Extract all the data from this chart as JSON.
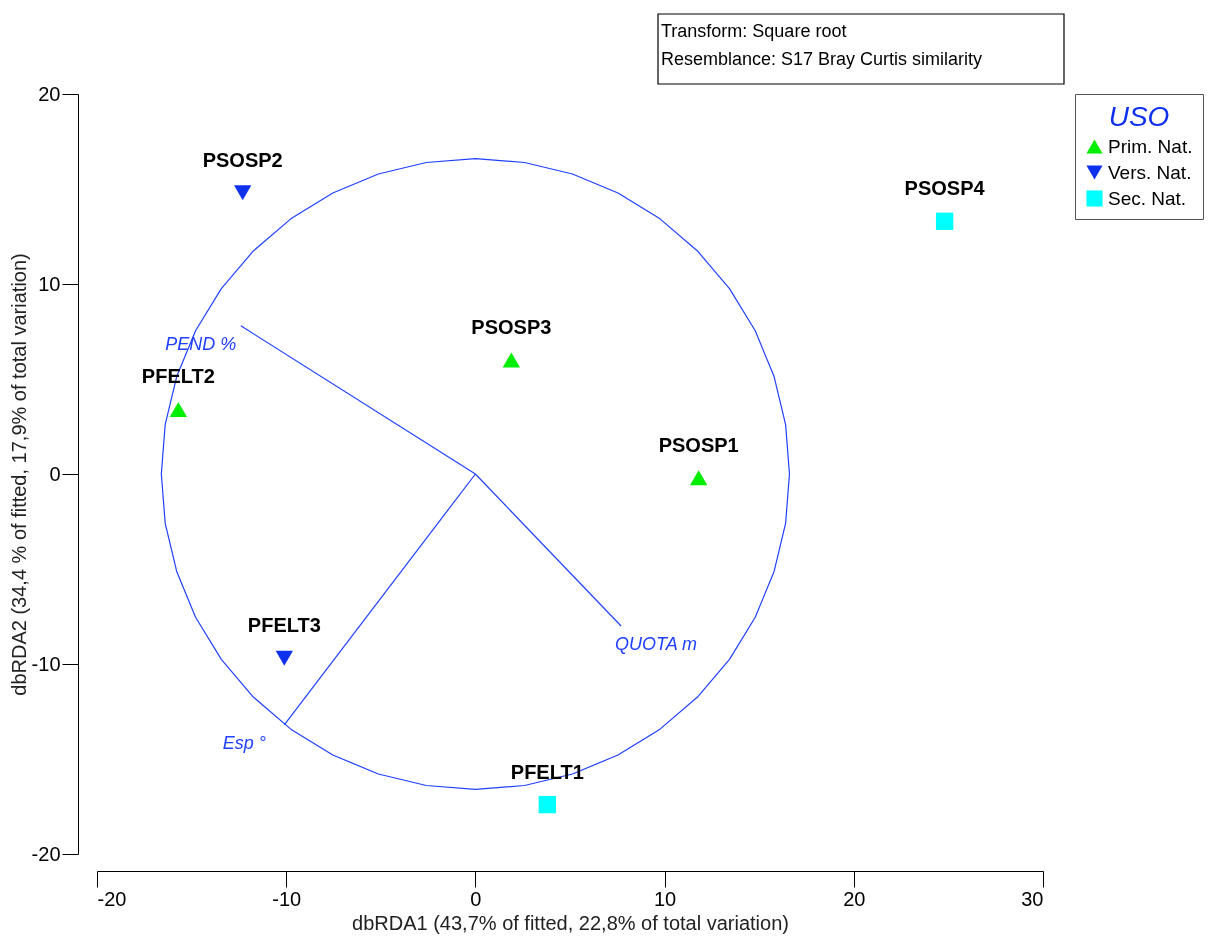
{
  "chart_data": {
    "type": "scatter",
    "xlabel": "dbRDA1 (43,7% of fitted, 22,8% of total variation)",
    "ylabel": "dbRDA2 (34,4 % of fitted, 17,9% of total variation)",
    "legend_title": "USO",
    "xlim": [
      -20,
      30
    ],
    "xticks": [
      -20,
      -10,
      0,
      10,
      20,
      30
    ],
    "ylim": [
      -20,
      20
    ],
    "yticks": [
      -20,
      -10,
      0,
      10,
      20
    ],
    "grid": false,
    "legend": "right",
    "series": [
      {
        "name": "Prim. Nat.",
        "color": "#00ee00",
        "marker": "triangle",
        "x": [
          1.9,
          -15.7,
          11.8
        ],
        "values": [
          6.0,
          3.4,
          -0.2
        ]
      },
      {
        "name": "Vers. Nat.",
        "color": "#1030f0",
        "marker": "triangle-down",
        "x": [
          -12.3,
          -10.1
        ],
        "values": [
          14.8,
          -9.7
        ]
      },
      {
        "name": "Sec. Nat.",
        "color": "#00ffff",
        "marker": "square",
        "x": [
          24.8,
          3.8
        ],
        "values": [
          13.3,
          -17.4
        ]
      },
      {
        "name": "PEND %",
        "type": "line",
        "color": "#2040ff",
        "marker": "none",
        "x": [
          0,
          -12.4
        ],
        "values": [
          0,
          7.8
        ]
      },
      {
        "name": "QUOTA m",
        "type": "line",
        "color": "#2040ff",
        "marker": "none",
        "x": [
          0,
          7.7
        ],
        "values": [
          0,
          -8.0
        ]
      },
      {
        "name": "Esp °",
        "type": "line",
        "color": "#2040ff",
        "marker": "none",
        "x": [
          0,
          -10.1
        ],
        "values": [
          0,
          -13.2
        ]
      }
    ],
    "annotations": [
      {
        "text": "PSOSP2",
        "x": -12.3,
        "y": 14.8
      },
      {
        "text": "PSOSP4",
        "x": 24.8,
        "y": 13.3
      },
      {
        "text": "PSOSP3",
        "x": 1.9,
        "y": 6.0
      },
      {
        "text": "PFELT2",
        "x": -15.7,
        "y": 3.4
      },
      {
        "text": "PSOSP1",
        "x": 11.8,
        "y": -0.2
      },
      {
        "text": "PFELT3",
        "x": -10.1,
        "y": -9.7
      },
      {
        "text": "PFELT1",
        "x": 3.8,
        "y": -17.4
      },
      "Transform: Square root",
      "Resemblance: S17 Bray Curtis similarity"
    ]
  }
}
